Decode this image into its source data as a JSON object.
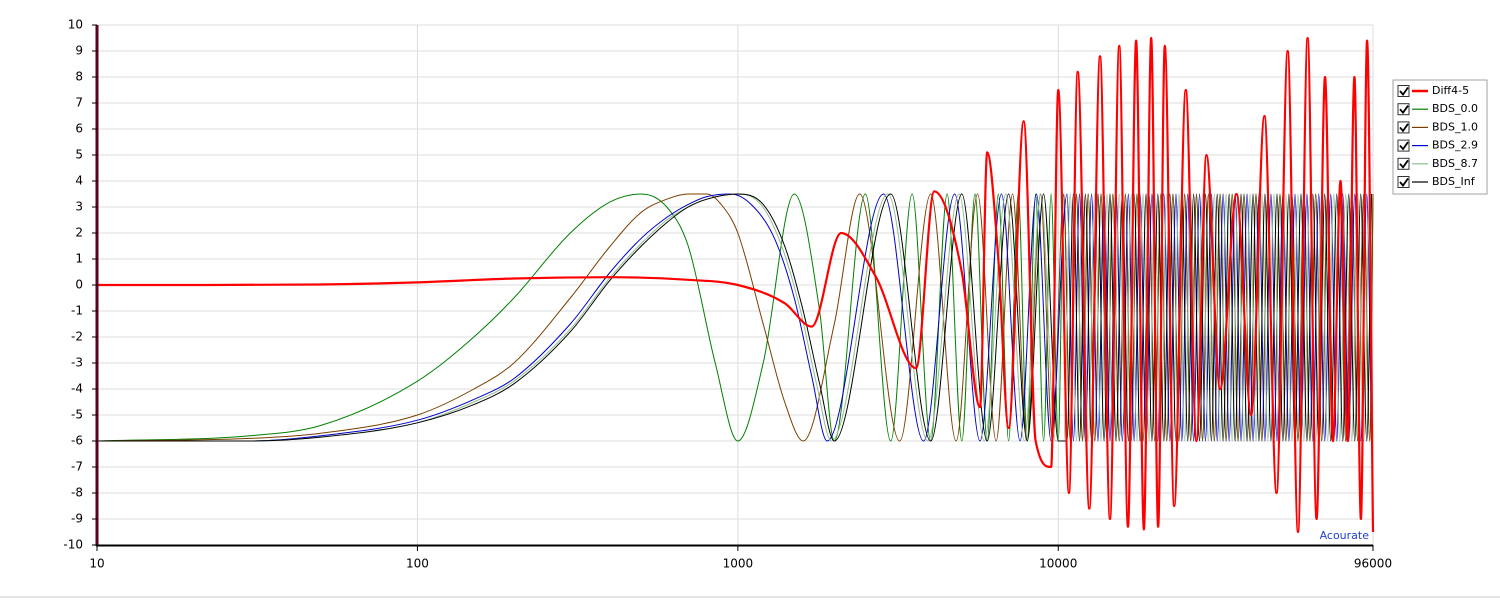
{
  "chart_data": {
    "type": "line",
    "watermark": "Acourate",
    "xscale": "log",
    "xlim": [
      10,
      96000
    ],
    "xticks": [
      10,
      100,
      1000,
      10000,
      96000
    ],
    "ylim": [
      -10,
      10
    ],
    "yticks": [
      -10,
      -9,
      -8,
      -7,
      -6,
      -5,
      -4,
      -3,
      -2,
      -1,
      0,
      1,
      2,
      3,
      4,
      5,
      6,
      7,
      8,
      9,
      10
    ],
    "grid": true,
    "legend": "right",
    "series": [
      {
        "name": "Diff4-5",
        "color": "#ff0000",
        "x": [
          10,
          20,
          50,
          100,
          200,
          400,
          700,
          1000,
          1400,
          1700,
          2100,
          2700,
          3600,
          4100,
          5000,
          5700,
          6000,
          6500,
          7000,
          7800,
          8500,
          9500,
          10000,
          10800,
          11500,
          12500,
          13500,
          14500,
          15500,
          16500,
          17500,
          18500,
          19500,
          20500,
          21500,
          23000,
          25000,
          27000,
          29000,
          32000,
          36000,
          40000,
          44000,
          48000,
          52000,
          56000,
          60000,
          64000,
          68000,
          72000,
          76000,
          80000,
          84000,
          88000,
          92000,
          96000
        ],
        "values": [
          0,
          0,
          0.02,
          0.1,
          0.25,
          0.3,
          0.2,
          0,
          -0.7,
          -1.6,
          2,
          0.3,
          -3.2,
          3.6,
          0.5,
          -4.7,
          5.1,
          1,
          -5.5,
          6.3,
          -6,
          -7,
          7.5,
          -8,
          8.2,
          -8.6,
          8.8,
          -9,
          9.2,
          -9.3,
          9.4,
          -9.4,
          9.5,
          -9.3,
          9.2,
          -8.5,
          7.5,
          -6,
          5,
          -4,
          3.5,
          -5,
          6.5,
          -8,
          9,
          -9.5,
          9.5,
          -9,
          8,
          -6,
          4,
          -6,
          8,
          -9,
          9.4,
          -9.5
        ]
      },
      {
        "name": "BDS_0.0",
        "color": "#008000",
        "x": [
          10,
          30,
          50,
          100,
          150,
          200,
          300,
          400,
          500,
          600,
          700,
          850,
          1000,
          1200,
          1500,
          1800,
          2000,
          2500,
          3000,
          3500,
          4000,
          4500,
          5000,
          5500,
          6000,
          6500,
          7000,
          7500,
          8000,
          8500,
          9000,
          9500,
          10000,
          10400,
          10900,
          11400,
          11900,
          12400,
          13000,
          13600,
          14200,
          14800,
          15500,
          16200,
          16900,
          17600,
          18400,
          19200,
          20000,
          20900,
          21800,
          22800,
          23800,
          24800,
          25900,
          27000,
          28200,
          29400,
          30700,
          32000,
          33400,
          34900,
          36400,
          38000,
          39700,
          41400,
          43200,
          45100,
          47100,
          49200,
          51300,
          53600,
          56000,
          58400,
          61000,
          63600,
          66400,
          69300,
          72400,
          75600,
          78900,
          82400,
          86000,
          89800,
          93800,
          96000
        ],
        "values": [
          -6,
          -5.8,
          -5.4,
          -3.7,
          -2,
          -0.5,
          2,
          3.2,
          3.5,
          3,
          1.5,
          -3,
          -6,
          -3,
          3.5,
          -1,
          -6,
          3.5,
          -6,
          3.5,
          -6,
          3.5,
          -6,
          3.5,
          -6,
          3.5,
          -6,
          3.5,
          -6,
          3.5,
          -6,
          3.5,
          -6,
          3.5,
          -6,
          3.5,
          -6,
          3.5,
          -6,
          3.5,
          -6,
          3.5,
          -6,
          3.5,
          -6,
          3.5,
          -6,
          3.5,
          -6,
          3.5,
          -6,
          3.5,
          -6,
          3.5,
          -6,
          3.5,
          -6,
          3.5,
          -6,
          3.5,
          -6,
          3.5,
          -6,
          3.5,
          -6,
          3.5,
          -6,
          3.5,
          -6,
          3.5,
          -6,
          3.5,
          -6,
          3.5,
          -6,
          3.5,
          -6,
          3.5,
          -6,
          3.5,
          -6,
          3.5,
          -6,
          3.5,
          -6,
          3.5
        ]
      },
      {
        "name": "BDS_1.0",
        "color": "#7b3f00",
        "x": [
          10,
          30,
          50,
          100,
          150,
          200,
          300,
          400,
          500,
          600,
          700,
          800,
          900,
          1000,
          1200,
          1400,
          1600,
          2000,
          2400,
          3200,
          4000,
          4800,
          5600,
          6400,
          7200,
          8000,
          8800,
          9600,
          10400,
          10900,
          11400,
          11900,
          12400,
          13000,
          13600,
          14200,
          14800,
          15500,
          16200,
          16900,
          17600,
          18400,
          19200,
          20000,
          20900,
          21800,
          22800,
          23800,
          24800,
          25900,
          27000,
          28200,
          29400,
          30700,
          32000,
          33400,
          34900,
          36400,
          38000,
          39700,
          41400,
          43200,
          45100,
          47100,
          49200,
          51300,
          53600,
          56000,
          58400,
          61000,
          63600,
          66400,
          69300,
          72400,
          75600,
          78900,
          82400,
          86000,
          89800,
          93800,
          96000
        ],
        "values": [
          -6,
          -5.9,
          -5.7,
          -5,
          -4,
          -3,
          -0.5,
          1.5,
          2.8,
          3.3,
          3.5,
          3.5,
          3,
          2,
          -1.5,
          -4.5,
          -6,
          -1.5,
          3.5,
          -6,
          3.5,
          -6,
          3.5,
          -6,
          3.5,
          -6,
          3.5,
          -6,
          3.5,
          -6,
          3.5,
          -6,
          3.5,
          -6,
          3.5,
          -6,
          3.5,
          -6,
          3.5,
          -6,
          3.5,
          -6,
          3.5,
          -6,
          3.5,
          -6,
          3.5,
          -6,
          3.5,
          -6,
          3.5,
          -6,
          3.5,
          -6,
          3.5,
          -6,
          3.5,
          -6,
          3.5,
          -6,
          3.5,
          -6,
          3.5,
          -6,
          3.5,
          -6,
          3.5,
          -6,
          3.5,
          -6,
          3.5,
          -6,
          3.5,
          -6,
          3.5,
          -6,
          3.5,
          -6,
          3.5,
          -6,
          3.5
        ]
      },
      {
        "name": "BDS_2.9",
        "color": "#0000cd",
        "x": [
          10,
          30,
          50,
          100,
          150,
          200,
          300,
          400,
          500,
          600,
          700,
          800,
          950,
          1100,
          1300,
          1500,
          1700,
          1900,
          2850,
          3800,
          4750,
          5700,
          6650,
          7600,
          8550,
          9500,
          10650,
          11150,
          11650,
          12150,
          12700,
          13300,
          13900,
          14500,
          15150,
          15850,
          16550,
          17250,
          18000,
          18800,
          19600,
          20450,
          21350,
          22300,
          23300,
          24300,
          25350,
          26450,
          27600,
          28800,
          30050,
          31350,
          32700,
          34150,
          35650,
          37200,
          38850,
          40550,
          42300,
          44150,
          46100,
          48150,
          50250,
          52450,
          54800,
          57200,
          59700,
          62300,
          65000,
          67850,
          70850,
          74000,
          77250,
          80650,
          84200,
          87900,
          91800,
          95000
        ],
        "values": [
          -6,
          -6,
          -5.8,
          -5.2,
          -4.4,
          -3.6,
          -1.5,
          0.5,
          1.8,
          2.6,
          3.1,
          3.4,
          3.5,
          3.1,
          1.8,
          -0.5,
          -3.5,
          -6,
          3.5,
          -6,
          3.5,
          -6,
          3.5,
          -6,
          3.5,
          -6,
          3.5,
          -6,
          3.5,
          -6,
          3.5,
          -6,
          3.5,
          -6,
          3.5,
          -6,
          3.5,
          -6,
          3.5,
          -6,
          3.5,
          -6,
          3.5,
          -6,
          3.5,
          -6,
          3.5,
          -6,
          3.5,
          -6,
          3.5,
          -6,
          3.5,
          -6,
          3.5,
          -6,
          3.5,
          -6,
          3.5,
          -6,
          3.5,
          -6,
          3.5,
          -6,
          3.5,
          -6,
          3.5,
          -6,
          3.5,
          -6,
          3.5,
          -6,
          3.5,
          -6,
          3.5,
          -6,
          3.5,
          -6
        ]
      },
      {
        "name": "BDS_8.7",
        "color": "#8fbc8f",
        "x": [
          10,
          30,
          50,
          100,
          150,
          200,
          300,
          400,
          500,
          600,
          700,
          800,
          980,
          1180,
          1370,
          1570,
          1760,
          1960,
          2940,
          3920,
          4900,
          5880,
          6860,
          7840,
          8820,
          9800,
          10400,
          10900,
          11400,
          11900,
          12400,
          13000,
          13600,
          14200,
          14800,
          15500,
          16200,
          16900,
          17600,
          18400,
          19200,
          20000,
          20900,
          21800,
          22800,
          23800,
          24800,
          25900,
          27000,
          28200,
          29400,
          30700,
          32000,
          33400,
          34900,
          36400,
          38000,
          39700,
          41400,
          43200,
          45100,
          47100,
          49200,
          51300,
          53600,
          56000,
          58400,
          61000,
          63600,
          66400,
          69300,
          72400,
          75600,
          78900,
          82400,
          86000,
          89800,
          93800,
          96000
        ],
        "values": [
          -6,
          -6,
          -5.85,
          -5.3,
          -4.5,
          -3.7,
          -1.7,
          0.3,
          1.6,
          2.5,
          3.0,
          3.3,
          3.5,
          3.1,
          1.5,
          -1,
          -3.8,
          -6,
          3.5,
          -6,
          3.5,
          -6,
          3.5,
          -6,
          3.5,
          -6,
          -6,
          3.5,
          -6,
          3.5,
          -6,
          3.5,
          -6,
          3.5,
          -6,
          3.5,
          -6,
          3.5,
          -6,
          3.5,
          -6,
          3.5,
          -6,
          3.5,
          -6,
          3.5,
          -6,
          3.5,
          -6,
          3.5,
          -6,
          3.5,
          -6,
          3.5,
          -6,
          3.5,
          -6,
          3.5,
          -6,
          3.5,
          -6,
          3.5,
          -6,
          3.5,
          -6,
          3.5,
          -6,
          3.5,
          -6,
          3.5,
          -6,
          3.5,
          -6,
          3.5,
          -6,
          3.5,
          -6,
          3.5,
          -6
        ]
      },
      {
        "name": "BDS_Inf",
        "color": "#000000",
        "x": [
          10,
          30,
          50,
          100,
          150,
          200,
          300,
          400,
          500,
          600,
          700,
          800,
          1000,
          1200,
          1400,
          1600,
          1800,
          2000,
          3000,
          4000,
          5000,
          6000,
          7000,
          8000,
          9000,
          10000,
          10650,
          11150,
          11650,
          12150,
          12700,
          13300,
          13900,
          14500,
          15150,
          15850,
          16550,
          17250,
          18000,
          18800,
          19600,
          20450,
          21350,
          22300,
          23300,
          24300,
          25350,
          26450,
          27600,
          28800,
          30050,
          31350,
          32700,
          34150,
          35650,
          37200,
          38850,
          40550,
          42300,
          44150,
          46100,
          48150,
          50250,
          52450,
          54800,
          57200,
          59700,
          62300,
          65000,
          67850,
          70850,
          74000,
          77250,
          80650,
          84200,
          87900,
          91800,
          95000
        ],
        "values": [
          -6,
          -6,
          -5.85,
          -5.3,
          -4.6,
          -3.8,
          -1.8,
          0.2,
          1.5,
          2.4,
          3.0,
          3.3,
          3.5,
          3.1,
          1.5,
          -1,
          -3.8,
          -6,
          3.5,
          -6,
          3.5,
          -6,
          3.5,
          -6,
          3.5,
          -6,
          -6,
          3.5,
          -6,
          3.5,
          -6,
          3.5,
          -6,
          3.5,
          -6,
          3.5,
          -6,
          3.5,
          -6,
          3.5,
          -6,
          3.5,
          -6,
          3.5,
          -6,
          3.5,
          -6,
          3.5,
          -6,
          3.5,
          -6,
          3.5,
          -6,
          3.5,
          -6,
          3.5,
          -6,
          3.5,
          -6,
          3.5,
          -6,
          3.5,
          -6,
          3.5,
          -6,
          3.5,
          -6,
          3.5,
          -6,
          3.5,
          -6,
          3.5,
          -6,
          3.5,
          -6,
          3.5,
          -6,
          3.5
        ]
      }
    ]
  }
}
